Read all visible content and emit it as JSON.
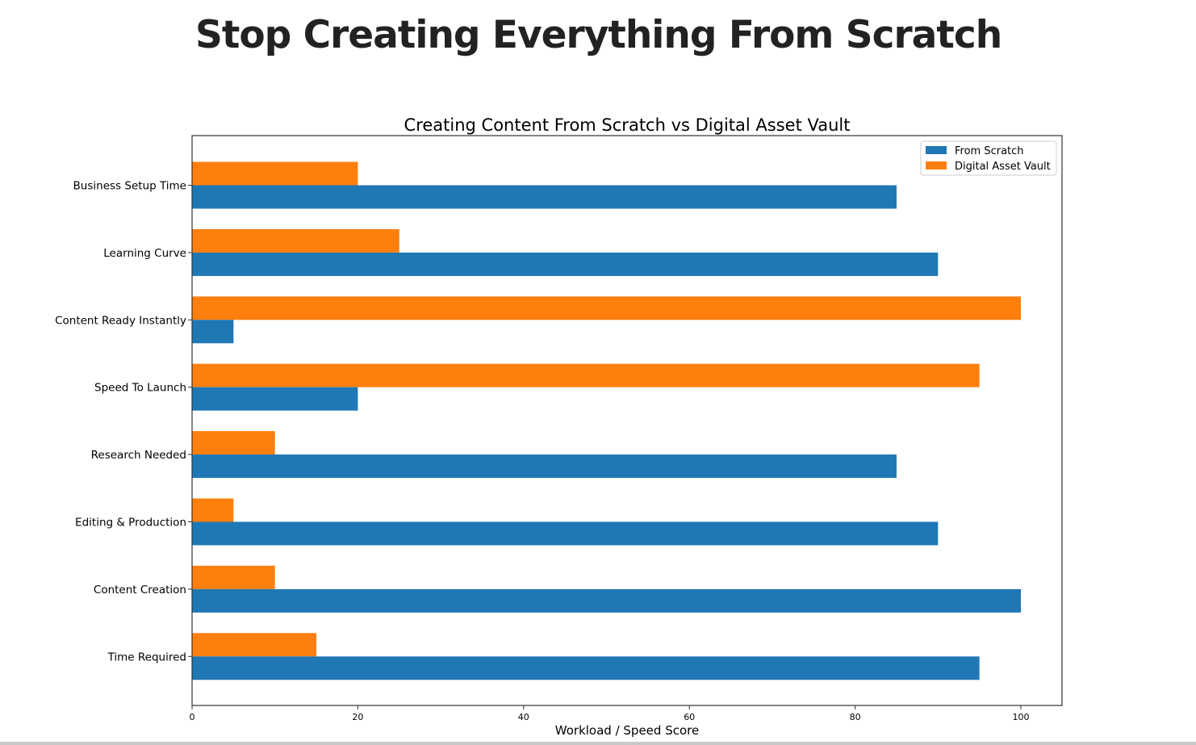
{
  "page": {
    "heading": "Stop Creating Everything From Scratch"
  },
  "chart_data": {
    "type": "bar",
    "orientation": "horizontal",
    "title": "Creating Content From Scratch vs Digital Asset Vault",
    "xlabel": "Workload / Speed Score",
    "ylabel": "",
    "xlim": [
      0,
      105
    ],
    "xticks": [
      0,
      20,
      40,
      60,
      80,
      100
    ],
    "categories": [
      "Business Setup Time",
      "Learning Curve",
      "Content Ready Instantly",
      "Speed To Launch",
      "Research Needed",
      "Editing & Production",
      "Content Creation",
      "Time Required"
    ],
    "series": [
      {
        "name": "From Scratch",
        "color": "#1f77b4",
        "values": [
          85,
          90,
          5,
          20,
          85,
          90,
          100,
          95
        ]
      },
      {
        "name": "Digital Asset Vault",
        "color": "#ff7f0e",
        "values": [
          20,
          25,
          100,
          95,
          10,
          5,
          10,
          15
        ]
      }
    ],
    "legend_position": "top-right",
    "grid": false
  }
}
